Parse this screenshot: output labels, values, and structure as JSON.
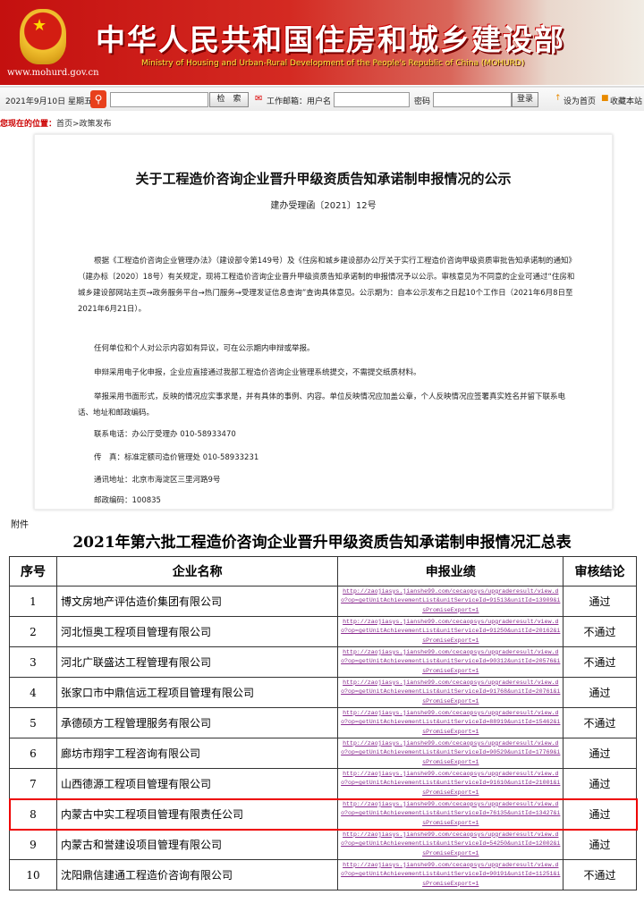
{
  "header": {
    "title": "中华人民共和国住房和城乡建设部",
    "subtitle": "Ministry of Housing and Urban-Rural Development of the People's Republic of China (MOHURD)",
    "site": "www.mohurd.gov.cn"
  },
  "toolbar": {
    "date": "2021年9月10日 星期五",
    "search_btn": "检　索",
    "mail_label": "工作邮箱：用户名",
    "password_label": "密码",
    "login_btn": "登录",
    "set_home": "设为首页",
    "bookmark": "收藏本站"
  },
  "breadcrumb": {
    "label": "您现在的位置：",
    "path": "首页>政策发布"
  },
  "doc": {
    "title": "关于工程造价咨询企业晋升甲级资质告知承诺制申报情况的公示",
    "number": "建办受理函〔2021〕12号",
    "paragraphs": [
      "根据《工程造价咨询企业管理办法》（建设部令第149号）及《住房和城乡建设部办公厅关于实行工程造价咨询甲级资质审批告知承诺制的通知》（建办标〔2020〕18号）有关规定，现将工程造价咨询企业晋升甲级资质告知承诺制的申报情况予以公示。审核意见为不同意的企业可通过“住房和城乡建设部网站主页→政务服务平台→热门服务→受理发证信息查询”查询具体意见。公示期为：自本公示发布之日起10个工作日（2021年6月8日至2021年6月21日）。",
      "任何单位和个人对公示内容如有异议，可在公示期内申辩或举报。",
      "申辩采用电子化申报，企业应直接通过我部工程造价咨询企业管理系统提交，不需提交纸质材料。",
      "举报采用书面形式，反映的情况应实事求是，并有具体的事例、内容。单位反映情况应加盖公章，个人反映情况应签署真实姓名并留下联系电话、地址和邮政编码。",
      "联系电话：办公厅受理办 010-58933470",
      "传　真：标准定额司造价管理处 010-58933231",
      "通讯地址：北京市海淀区三里河路9号",
      "邮政编码：100835"
    ]
  },
  "attachment_label": "附件",
  "table": {
    "title": "2021年第六批工程造价咨询企业晋升甲级资质告知承诺制申报情况汇总表",
    "headers": [
      "序号",
      "企业名称",
      "申报业绩",
      "审核结论"
    ],
    "rows": [
      {
        "no": "1",
        "name": "博文房地产评估造价集团有限公司",
        "url": "http://zaojiasys.jianshe99.com/cecaopsys/upgraderesult/view.do?op=getUnitAchievementList&unitServiceId=91513&unitId=13909&isPromiseExport=1",
        "result": "通过"
      },
      {
        "no": "2",
        "name": "河北恒奥工程项目管理有限公司",
        "url": "http://zaojiasys.jianshe99.com/cecaopsys/upgraderesult/view.do?op=getUnitAchievementList&unitServiceId=91250&unitId=20162&isPromiseExport=1",
        "result": "不通过"
      },
      {
        "no": "3",
        "name": "河北广联盛达工程管理有限公司",
        "url": "http://zaojiasys.jianshe99.com/cecaopsys/upgraderesult/view.do?op=getUnitAchievementList&unitServiceId=90312&unitId=20576&isPromiseExport=1",
        "result": "不通过"
      },
      {
        "no": "4",
        "name": "张家口市中鼎信远工程项目管理有限公司",
        "url": "http://zaojiasys.jianshe99.com/cecaopsys/upgraderesult/view.do?op=getUnitAchievementList&unitServiceId=91768&unitId=20761&isPromiseExport=1",
        "result": "通过"
      },
      {
        "no": "5",
        "name": "承德硕方工程管理服务有限公司",
        "url": "http://zaojiasys.jianshe99.com/cecaopsys/upgraderesult/view.do?op=getUnitAchievementList&unitServiceId=88919&unitId=15462&isPromiseExport=1",
        "result": "不通过"
      },
      {
        "no": "6",
        "name": "廊坊市翔宇工程咨询有限公司",
        "url": "http://zaojiasys.jianshe99.com/cecaopsys/upgraderesult/view.do?op=getUnitAchievementList&unitServiceId=90529&unitId=17769&isPromiseExport=1",
        "result": "通过"
      },
      {
        "no": "7",
        "name": "山西德源工程项目管理有限公司",
        "url": "http://zaojiasys.jianshe99.com/cecaopsys/upgraderesult/view.do?op=getUnitAchievementList&unitServiceId=91610&unitId=21001&isPromiseExport=1",
        "result": "通过"
      },
      {
        "no": "8",
        "name": "内蒙古中实工程项目管理有限责任公司",
        "url": "http://zaojiasys.jianshe99.com/cecaopsys/upgraderesult/view.do?op=getUnitAchievementList&unitServiceId=76135&unitId=13427&isPromiseExport=1",
        "result": "通过",
        "highlighted": true
      },
      {
        "no": "9",
        "name": "内蒙古和誉建设项目管理有限公司",
        "url": "http://zaojiasys.jianshe99.com/cecaopsys/upgraderesult/view.do?op=getUnitAchievementList&unitServiceId=54250&unitId=12002&isPromiseExport=1",
        "result": "通过"
      },
      {
        "no": "10",
        "name": "沈阳鼎信建通工程造价咨询有限公司",
        "url": "http://zaojiasys.jianshe99.com/cecaopsys/upgraderesult/view.do?op=getUnitAchievementList&unitServiceId=90191&unitId=11251&isPromiseExport=1",
        "result": "不通过"
      }
    ]
  },
  "colors": {
    "brand_red": "#c4100f",
    "highlight": "#ee0000",
    "link": "#8a2a8f"
  }
}
